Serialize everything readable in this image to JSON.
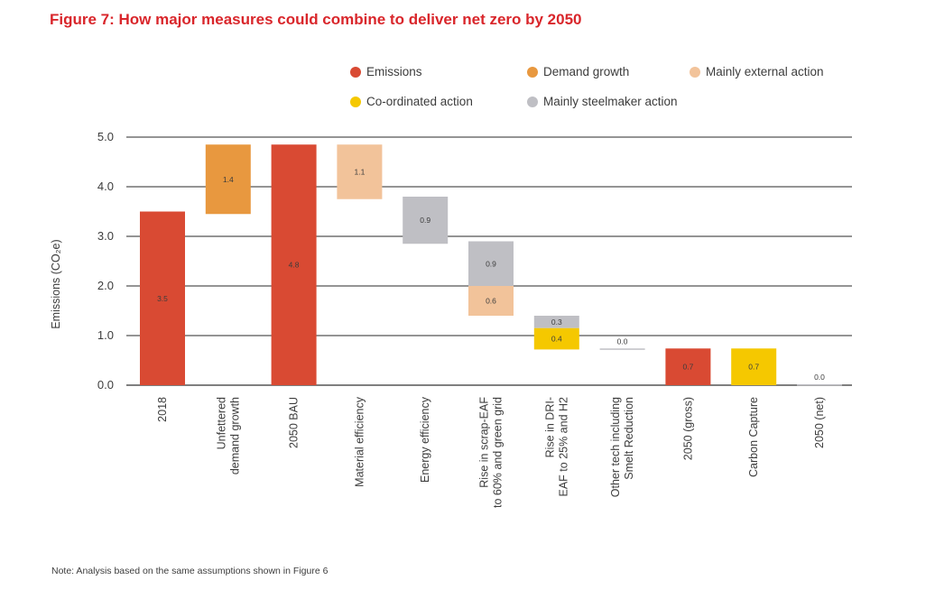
{
  "title": "Figure 7: How major measures could combine to deliver net zero by 2050",
  "note": "Note: Analysis based on the same assumptions shown in Figure 6",
  "colors": {
    "emissions": "#d94a33",
    "demand_growth": "#e8983f",
    "mainly_external_action": "#f2c39a",
    "coordinated_action": "#f5c800",
    "mainly_steelmaker_action": "#bfbfc4",
    "gridline": "#555555"
  },
  "legend": [
    {
      "label": "Emissions",
      "key": "emissions"
    },
    {
      "label": "Demand growth",
      "key": "demand_growth"
    },
    {
      "label": "Mainly external action",
      "key": "mainly_external_action"
    },
    {
      "label": "Co-ordinated action",
      "key": "coordinated_action"
    },
    {
      "label": "Mainly steelmaker action",
      "key": "mainly_steelmaker_action"
    }
  ],
  "chart_data": {
    "type": "bar",
    "subtype": "waterfall",
    "ylabel": "Emissions (CO₂e)",
    "ylim": [
      0,
      5
    ],
    "yticks": [
      "0.0",
      "1.0",
      "2.0",
      "3.0",
      "4.0",
      "5.0"
    ],
    "grid": true,
    "legend_position": "top",
    "categories": [
      [
        "2018"
      ],
      [
        "Unfettered",
        "demand growth"
      ],
      [
        "2050 BAU"
      ],
      [
        "Material efficiency"
      ],
      [
        "Energy efficiency"
      ],
      [
        "Rise in scrap-EAF",
        "to 60% and green grid"
      ],
      [
        "Rise in DRI-",
        "EAF to 25% and H2"
      ],
      [
        "Other tech including",
        "Smelt Reduction"
      ],
      [
        "2050 (gross)"
      ],
      [
        "Carbon Capture"
      ],
      [
        "2050 (net)"
      ]
    ],
    "segments": [
      {
        "category_index": 0,
        "bottom": 0.0,
        "top": 3.5,
        "label": "3.5",
        "series": "emissions"
      },
      {
        "category_index": 1,
        "bottom": 3.45,
        "top": 4.85,
        "label": "1.4",
        "series": "demand_growth"
      },
      {
        "category_index": 2,
        "bottom": 0.0,
        "top": 4.85,
        "label": "4.8",
        "series": "emissions"
      },
      {
        "category_index": 3,
        "bottom": 3.75,
        "top": 4.85,
        "label": "1.1",
        "series": "mainly_external_action"
      },
      {
        "category_index": 4,
        "bottom": 2.85,
        "top": 3.8,
        "label": "0.9",
        "series": "mainly_steelmaker_action"
      },
      {
        "category_index": 5,
        "bottom": 2.0,
        "top": 2.9,
        "label": "0.9",
        "series": "mainly_steelmaker_action"
      },
      {
        "category_index": 5,
        "bottom": 1.4,
        "top": 2.0,
        "label": "0.6",
        "series": "mainly_external_action"
      },
      {
        "category_index": 6,
        "bottom": 1.15,
        "top": 1.4,
        "label": "0.3",
        "series": "mainly_steelmaker_action"
      },
      {
        "category_index": 6,
        "bottom": 0.72,
        "top": 1.15,
        "label": "0.4",
        "series": "coordinated_action"
      },
      {
        "category_index": 7,
        "bottom": 0.72,
        "top": 0.74,
        "label": "0.0",
        "series": "mainly_steelmaker_action"
      },
      {
        "category_index": 8,
        "bottom": 0.0,
        "top": 0.74,
        "label": "0.7",
        "series": "emissions"
      },
      {
        "category_index": 9,
        "bottom": 0.0,
        "top": 0.74,
        "label": "0.7",
        "series": "coordinated_action"
      },
      {
        "category_index": 10,
        "bottom": 0.0,
        "top": 0.02,
        "label": "0.0",
        "series": "mainly_steelmaker_action"
      }
    ]
  }
}
